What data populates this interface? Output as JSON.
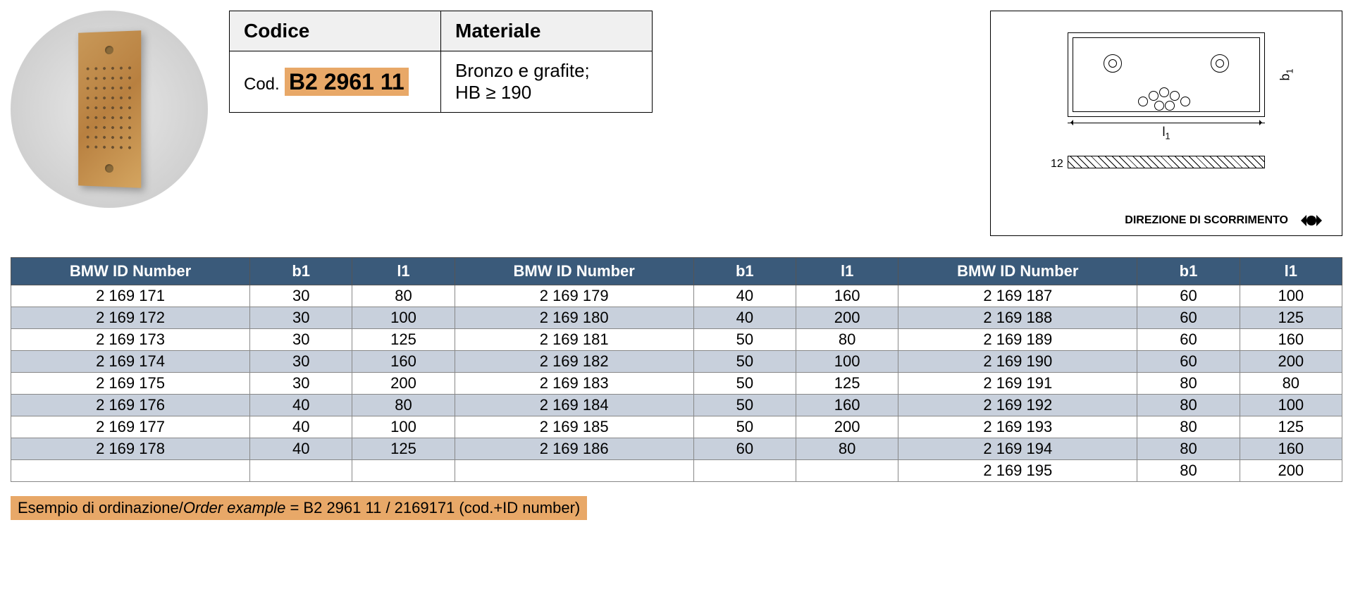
{
  "info": {
    "codice_label": "Codice",
    "materiale_label": "Materiale",
    "cod_prefix": "Cod.",
    "cod_value": "B2 2961 11",
    "materiale_line1": "Bronzo e grafite;",
    "materiale_line2": "HB ≥ 190"
  },
  "diagram": {
    "b1": "b",
    "b1_sub": "1",
    "l1": "l",
    "l1_sub": "1",
    "thickness": "12",
    "direzione": "DIREZIONE DI SCORRIMENTO"
  },
  "table": {
    "headers": {
      "id": "BMW ID Number",
      "b1": "b1",
      "l1": "l1"
    },
    "colors": {
      "header_bg": "#3a5a7a",
      "header_fg": "#ffffff",
      "row_even_bg": "#c8d0dc",
      "row_odd_bg": "#ffffff",
      "border": "#888888"
    },
    "rows": [
      {
        "c1": {
          "id": "2 169 171",
          "b1": "30",
          "l1": "80"
        },
        "c2": {
          "id": "2 169 179",
          "b1": "40",
          "l1": "160"
        },
        "c3": {
          "id": "2 169 187",
          "b1": "60",
          "l1": "100"
        }
      },
      {
        "c1": {
          "id": "2 169 172",
          "b1": "30",
          "l1": "100"
        },
        "c2": {
          "id": "2 169 180",
          "b1": "40",
          "l1": "200"
        },
        "c3": {
          "id": "2 169 188",
          "b1": "60",
          "l1": "125"
        }
      },
      {
        "c1": {
          "id": "2 169 173",
          "b1": "30",
          "l1": "125"
        },
        "c2": {
          "id": "2 169 181",
          "b1": "50",
          "l1": "80"
        },
        "c3": {
          "id": "2 169 189",
          "b1": "60",
          "l1": "160"
        }
      },
      {
        "c1": {
          "id": "2 169 174",
          "b1": "30",
          "l1": "160"
        },
        "c2": {
          "id": "2 169 182",
          "b1": "50",
          "l1": "100"
        },
        "c3": {
          "id": "2 169 190",
          "b1": "60",
          "l1": "200"
        }
      },
      {
        "c1": {
          "id": "2 169 175",
          "b1": "30",
          "l1": "200"
        },
        "c2": {
          "id": "2 169 183",
          "b1": "50",
          "l1": "125"
        },
        "c3": {
          "id": "2 169 191",
          "b1": "80",
          "l1": "80"
        }
      },
      {
        "c1": {
          "id": "2 169 176",
          "b1": "40",
          "l1": "80"
        },
        "c2": {
          "id": "2 169 184",
          "b1": "50",
          "l1": "160"
        },
        "c3": {
          "id": "2 169 192",
          "b1": "80",
          "l1": "100"
        }
      },
      {
        "c1": {
          "id": "2 169 177",
          "b1": "40",
          "l1": "100"
        },
        "c2": {
          "id": "2 169 185",
          "b1": "50",
          "l1": "200"
        },
        "c3": {
          "id": "2 169 193",
          "b1": "80",
          "l1": "125"
        }
      },
      {
        "c1": {
          "id": "2 169 178",
          "b1": "40",
          "l1": "125"
        },
        "c2": {
          "id": "2 169 186",
          "b1": "60",
          "l1": "80"
        },
        "c3": {
          "id": "2 169 194",
          "b1": "80",
          "l1": "160"
        }
      },
      {
        "c1": {
          "id": "",
          "b1": "",
          "l1": ""
        },
        "c2": {
          "id": "",
          "b1": "",
          "l1": ""
        },
        "c3": {
          "id": "2 169 195",
          "b1": "80",
          "l1": "200"
        }
      }
    ]
  },
  "order_example": {
    "label_it": "Esempio di ordinazione",
    "label_en": "Order example",
    "value": " = B2 2961 11 / 2169171 (cod.+ID number)"
  },
  "styling": {
    "highlight_bg": "#e8a868",
    "page_bg": "#ffffff",
    "font_family": "Arial",
    "header_fontsize": 28,
    "body_fontsize": 22
  }
}
